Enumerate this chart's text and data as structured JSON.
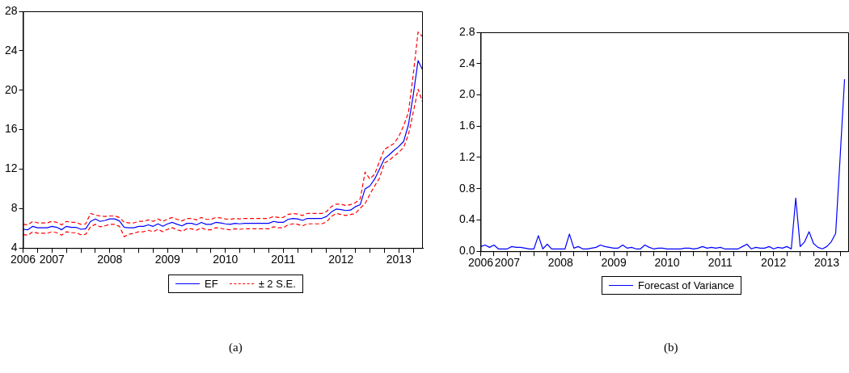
{
  "chart_data": [
    {
      "type": "line",
      "legend": "bottom",
      "marker": "none",
      "grid": false,
      "x": [
        "2006-07",
        "2006-08",
        "2006-09",
        "2006-10",
        "2006-11",
        "2006-12",
        "2007-01",
        "2007-02",
        "2007-03",
        "2007-04",
        "2007-05",
        "2007-06",
        "2007-07",
        "2007-08",
        "2007-09",
        "2007-10",
        "2007-11",
        "2007-12",
        "2008-01",
        "2008-02",
        "2008-03",
        "2008-04",
        "2008-05",
        "2008-06",
        "2008-07",
        "2008-08",
        "2008-09",
        "2008-10",
        "2008-11",
        "2008-12",
        "2009-01",
        "2009-02",
        "2009-03",
        "2009-04",
        "2009-05",
        "2009-06",
        "2009-07",
        "2009-08",
        "2009-09",
        "2009-10",
        "2009-11",
        "2009-12",
        "2010-01",
        "2010-02",
        "2010-03",
        "2010-04",
        "2010-05",
        "2010-06",
        "2010-07",
        "2010-08",
        "2010-09",
        "2010-10",
        "2010-11",
        "2010-12",
        "2011-01",
        "2011-02",
        "2011-03",
        "2011-04",
        "2011-05",
        "2011-06",
        "2011-07",
        "2011-08",
        "2011-09",
        "2011-10",
        "2011-11",
        "2011-12",
        "2012-01",
        "2012-02",
        "2012-03",
        "2012-04",
        "2012-05",
        "2012-06",
        "2012-07",
        "2012-08",
        "2012-09",
        "2012-10",
        "2012-11",
        "2012-12",
        "2013-01",
        "2013-02",
        "2013-03",
        "2013-04",
        "2013-05",
        "2013-06"
      ],
      "xlim": [
        "2006-07",
        "2013-06"
      ],
      "xticks": [
        {
          "value": "2006-07",
          "label": "2006"
        },
        {
          "value": "2006-10",
          "label": null
        },
        {
          "value": "2007-01",
          "label": "2007"
        },
        {
          "value": "2007-04",
          "label": null
        },
        {
          "value": "2007-07",
          "label": null
        },
        {
          "value": "2007-10",
          "label": null
        },
        {
          "value": "2008-01",
          "label": "2008"
        },
        {
          "value": "2008-04",
          "label": null
        },
        {
          "value": "2008-07",
          "label": null
        },
        {
          "value": "2008-10",
          "label": null
        },
        {
          "value": "2009-01",
          "label": "2009"
        },
        {
          "value": "2009-04",
          "label": null
        },
        {
          "value": "2009-07",
          "label": null
        },
        {
          "value": "2009-10",
          "label": null
        },
        {
          "value": "2010-01",
          "label": "2010"
        },
        {
          "value": "2010-04",
          "label": null
        },
        {
          "value": "2010-07",
          "label": null
        },
        {
          "value": "2010-10",
          "label": null
        },
        {
          "value": "2011-01",
          "label": "2011"
        },
        {
          "value": "2011-04",
          "label": null
        },
        {
          "value": "2011-07",
          "label": null
        },
        {
          "value": "2011-10",
          "label": null
        },
        {
          "value": "2012-01",
          "label": "2012"
        },
        {
          "value": "2012-04",
          "label": null
        },
        {
          "value": "2012-07",
          "label": null
        },
        {
          "value": "2012-10",
          "label": null
        },
        {
          "value": "2013-01",
          "label": "2013"
        },
        {
          "value": "2013-04",
          "label": null
        }
      ],
      "ylim": [
        4,
        28
      ],
      "yticks": [
        4,
        8,
        12,
        16,
        20,
        24,
        28
      ],
      "annotations": [
        "(a)"
      ],
      "series": [
        {
          "name": "EF",
          "color": "#0000ff",
          "line_style": "solid",
          "values": [
            5.9,
            5.85,
            6.2,
            6.05,
            6.05,
            6.05,
            6.2,
            6.1,
            5.85,
            6.2,
            6.1,
            6.1,
            5.9,
            5.95,
            6.7,
            6.95,
            6.7,
            6.8,
            6.95,
            6.95,
            6.75,
            6.1,
            6.05,
            6.05,
            6.2,
            6.2,
            6.35,
            6.2,
            6.45,
            6.2,
            6.45,
            6.6,
            6.4,
            6.25,
            6.5,
            6.5,
            6.35,
            6.6,
            6.4,
            6.4,
            6.6,
            6.55,
            6.45,
            6.4,
            6.5,
            6.45,
            6.5,
            6.5,
            6.5,
            6.5,
            6.5,
            6.5,
            6.7,
            6.6,
            6.6,
            6.9,
            7.0,
            6.95,
            6.8,
            7.0,
            7.0,
            7.0,
            7.0,
            7.2,
            7.65,
            7.95,
            7.9,
            7.8,
            7.85,
            8.2,
            8.4,
            10.0,
            10.3,
            11.0,
            12.0,
            13.05,
            13.45,
            13.9,
            14.3,
            14.8,
            16.5,
            19.5,
            23.0,
            22.0
          ]
        },
        {
          "name": "± 2 S.E.",
          "color": "#ff0000",
          "line_style": "dashed",
          "values": [
            6.4,
            6.35,
            6.7,
            6.55,
            6.55,
            6.55,
            6.7,
            6.6,
            6.35,
            6.7,
            6.6,
            6.6,
            6.4,
            6.45,
            7.5,
            7.35,
            7.25,
            7.2,
            7.25,
            7.25,
            7.1,
            6.6,
            6.55,
            6.55,
            6.7,
            6.7,
            6.85,
            6.7,
            6.95,
            6.7,
            6.95,
            7.1,
            6.9,
            6.75,
            7.0,
            7.0,
            6.85,
            7.1,
            6.9,
            6.9,
            7.1,
            7.05,
            6.95,
            6.9,
            7.0,
            6.95,
            7.0,
            7.0,
            7.0,
            7.0,
            7.0,
            7.0,
            7.2,
            7.1,
            7.1,
            7.4,
            7.5,
            7.45,
            7.3,
            7.5,
            7.5,
            7.5,
            7.5,
            7.7,
            8.2,
            8.45,
            8.45,
            8.3,
            8.4,
            8.6,
            9.0,
            11.7,
            11.0,
            11.5,
            12.8,
            14.0,
            14.3,
            14.6,
            15.3,
            16.4,
            17.75,
            21.6,
            25.9,
            25.4
          ]
        },
        {
          "color": "#ff0000",
          "line_style": "dashed",
          "values": [
            5.35,
            5.3,
            5.65,
            5.5,
            5.5,
            5.5,
            5.65,
            5.55,
            5.3,
            5.65,
            5.55,
            5.55,
            5.35,
            5.4,
            6.15,
            6.4,
            6.15,
            6.25,
            6.4,
            6.4,
            6.2,
            5.15,
            5.4,
            5.5,
            5.65,
            5.65,
            5.8,
            5.65,
            5.9,
            5.65,
            5.9,
            6.05,
            5.85,
            5.7,
            5.95,
            5.95,
            5.8,
            6.05,
            5.85,
            5.85,
            6.05,
            6.0,
            5.9,
            5.85,
            5.95,
            5.9,
            5.95,
            5.95,
            5.95,
            5.95,
            5.95,
            5.95,
            6.15,
            6.05,
            6.05,
            6.35,
            6.45,
            6.4,
            6.25,
            6.45,
            6.45,
            6.45,
            6.45,
            6.65,
            7.2,
            7.5,
            7.4,
            7.3,
            7.4,
            7.5,
            8.05,
            8.5,
            9.45,
            10.3,
            11.1,
            12.6,
            12.9,
            13.3,
            13.7,
            14.2,
            15.5,
            17.75,
            20.1,
            18.7
          ]
        }
      ]
    },
    {
      "type": "line",
      "legend": "bottom",
      "marker": "none",
      "grid": false,
      "x": [
        "2006-07",
        "2006-08",
        "2006-09",
        "2006-10",
        "2006-11",
        "2006-12",
        "2007-01",
        "2007-02",
        "2007-03",
        "2007-04",
        "2007-05",
        "2007-06",
        "2007-07",
        "2007-08",
        "2007-09",
        "2007-10",
        "2007-11",
        "2007-12",
        "2008-01",
        "2008-02",
        "2008-03",
        "2008-04",
        "2008-05",
        "2008-06",
        "2008-07",
        "2008-08",
        "2008-09",
        "2008-10",
        "2008-11",
        "2008-12",
        "2009-01",
        "2009-02",
        "2009-03",
        "2009-04",
        "2009-05",
        "2009-06",
        "2009-07",
        "2009-08",
        "2009-09",
        "2009-10",
        "2009-11",
        "2009-12",
        "2010-01",
        "2010-02",
        "2010-03",
        "2010-04",
        "2010-05",
        "2010-06",
        "2010-07",
        "2010-08",
        "2010-09",
        "2010-10",
        "2010-11",
        "2010-12",
        "2011-01",
        "2011-02",
        "2011-03",
        "2011-04",
        "2011-05",
        "2011-06",
        "2011-07",
        "2011-08",
        "2011-09",
        "2011-10",
        "2011-11",
        "2011-12",
        "2012-01",
        "2012-02",
        "2012-03",
        "2012-04",
        "2012-05",
        "2012-06",
        "2012-07",
        "2012-08",
        "2012-09",
        "2012-10",
        "2012-11",
        "2012-12",
        "2013-01",
        "2013-02",
        "2013-03",
        "2013-04",
        "2013-05"
      ],
      "xlim": [
        "2006-07",
        "2013-06"
      ],
      "xticks": [
        {
          "value": "2006-07",
          "label": "2006"
        },
        {
          "value": "2006-10",
          "label": null
        },
        {
          "value": "2007-01",
          "label": "2007"
        },
        {
          "value": "2007-04",
          "label": null
        },
        {
          "value": "2007-07",
          "label": null
        },
        {
          "value": "2007-10",
          "label": null
        },
        {
          "value": "2008-01",
          "label": "2008"
        },
        {
          "value": "2008-04",
          "label": null
        },
        {
          "value": "2008-07",
          "label": null
        },
        {
          "value": "2008-10",
          "label": null
        },
        {
          "value": "2009-01",
          "label": "2009"
        },
        {
          "value": "2009-04",
          "label": null
        },
        {
          "value": "2009-07",
          "label": null
        },
        {
          "value": "2009-10",
          "label": null
        },
        {
          "value": "2010-01",
          "label": "2010"
        },
        {
          "value": "2010-04",
          "label": null
        },
        {
          "value": "2010-07",
          "label": null
        },
        {
          "value": "2010-10",
          "label": null
        },
        {
          "value": "2011-01",
          "label": "2011"
        },
        {
          "value": "2011-04",
          "label": null
        },
        {
          "value": "2011-07",
          "label": null
        },
        {
          "value": "2011-10",
          "label": null
        },
        {
          "value": "2012-01",
          "label": "2012"
        },
        {
          "value": "2012-04",
          "label": null
        },
        {
          "value": "2012-07",
          "label": null
        },
        {
          "value": "2012-10",
          "label": null
        },
        {
          "value": "2013-01",
          "label": "2013"
        },
        {
          "value": "2013-04",
          "label": null
        }
      ],
      "ylim": [
        0,
        2.8
      ],
      "yticks": [
        {
          "value": 0,
          "label": "0.0"
        },
        {
          "value": 0.4,
          "label": "0.4"
        },
        {
          "value": 0.8,
          "label": "0.8"
        },
        {
          "value": 1.2,
          "label": "1.2"
        },
        {
          "value": 1.6,
          "label": "1.6"
        },
        {
          "value": 2.0,
          "label": "2.0"
        },
        {
          "value": 2.4,
          "label": "2.4"
        },
        {
          "value": 2.8,
          "label": "2.8"
        }
      ],
      "annotations": [
        "(b)"
      ],
      "series": [
        {
          "name": "Forecast of Variance",
          "color": "#0000ff",
          "line_style": "solid",
          "values": [
            0.06,
            0.08,
            0.05,
            0.08,
            0.03,
            0.03,
            0.03,
            0.06,
            0.05,
            0.05,
            0.04,
            0.03,
            0.03,
            0.2,
            0.03,
            0.09,
            0.03,
            0.03,
            0.03,
            0.03,
            0.22,
            0.04,
            0.06,
            0.03,
            0.03,
            0.04,
            0.05,
            0.08,
            0.06,
            0.05,
            0.04,
            0.04,
            0.08,
            0.04,
            0.05,
            0.03,
            0.03,
            0.08,
            0.05,
            0.03,
            0.04,
            0.04,
            0.03,
            0.03,
            0.03,
            0.03,
            0.04,
            0.04,
            0.03,
            0.04,
            0.06,
            0.04,
            0.05,
            0.04,
            0.05,
            0.03,
            0.03,
            0.03,
            0.03,
            0.06,
            0.09,
            0.03,
            0.05,
            0.04,
            0.04,
            0.06,
            0.03,
            0.05,
            0.04,
            0.06,
            0.03,
            0.68,
            0.06,
            0.12,
            0.25,
            0.1,
            0.05,
            0.03,
            0.06,
            0.12,
            0.23,
            1.2,
            2.2
          ]
        }
      ]
    }
  ]
}
